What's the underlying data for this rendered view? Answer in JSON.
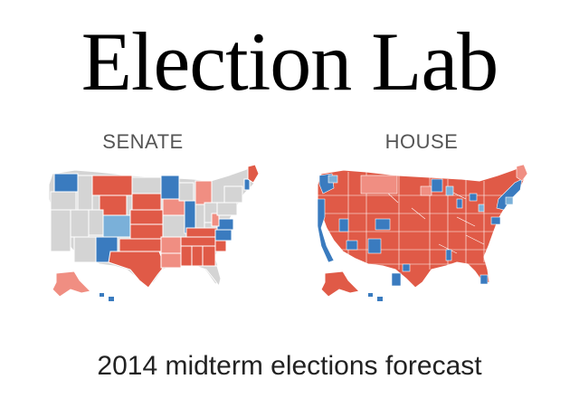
{
  "header": {
    "title": "Election Lab"
  },
  "maps": {
    "senate": {
      "label": "SENATE"
    },
    "house": {
      "label": "HOUSE"
    }
  },
  "footer": {
    "subtitle": "2014 midterm elections forecast"
  },
  "colors": {
    "republican": "#e05a47",
    "lean_republican": "#f08e82",
    "democrat": "#3a7bbf",
    "lean_democrat": "#7ab0d9",
    "no_race": "#d4d4d4"
  }
}
